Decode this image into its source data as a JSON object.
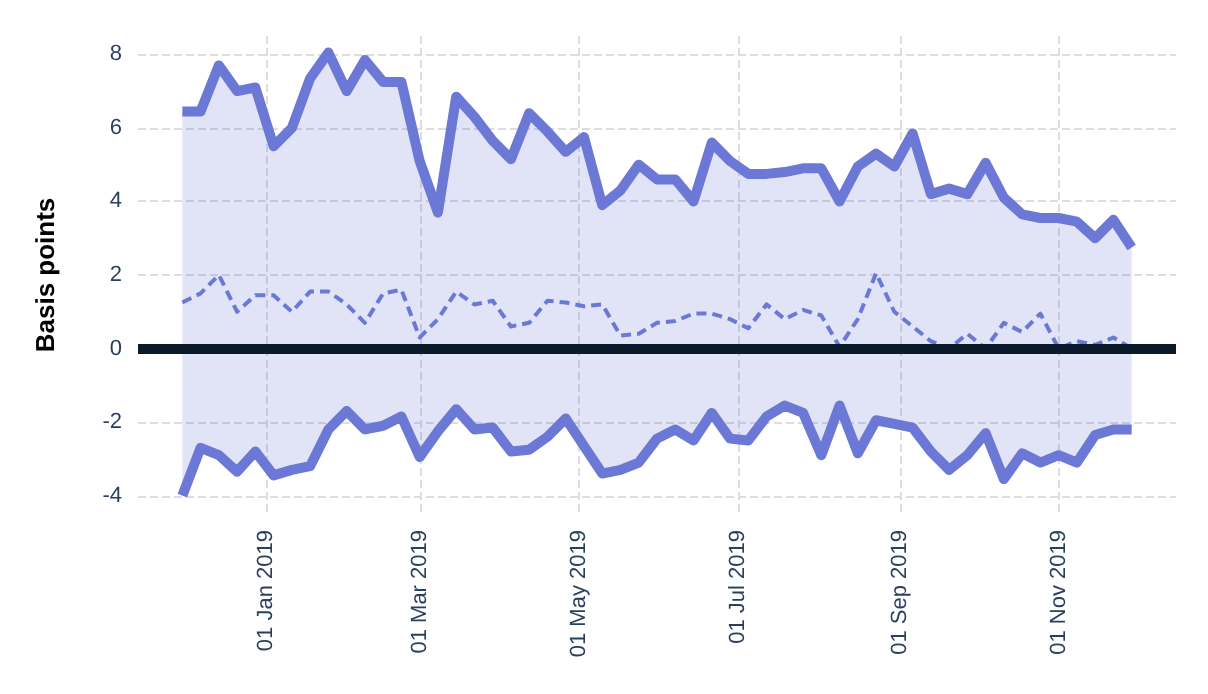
{
  "chart_data": {
    "type": "line",
    "ylabel": "Basis points",
    "x": [
      "2018-11-30",
      "2018-12-07",
      "2018-12-14",
      "2018-12-21",
      "2018-12-28",
      "2019-01-04",
      "2019-01-11",
      "2019-01-18",
      "2019-01-25",
      "2019-02-01",
      "2019-02-08",
      "2019-02-15",
      "2019-02-22",
      "2019-03-01",
      "2019-03-08",
      "2019-03-15",
      "2019-03-22",
      "2019-03-29",
      "2019-04-05",
      "2019-04-12",
      "2019-04-19",
      "2019-04-26",
      "2019-05-03",
      "2019-05-10",
      "2019-05-17",
      "2019-05-24",
      "2019-05-31",
      "2019-06-07",
      "2019-06-14",
      "2019-06-21",
      "2019-06-28",
      "2019-07-05",
      "2019-07-12",
      "2019-07-19",
      "2019-07-26",
      "2019-08-02",
      "2019-08-09",
      "2019-08-16",
      "2019-08-23",
      "2019-08-30",
      "2019-09-06",
      "2019-09-13",
      "2019-09-20",
      "2019-09-27",
      "2019-10-04",
      "2019-10-11",
      "2019-10-18",
      "2019-10-25",
      "2019-11-01",
      "2019-11-08",
      "2019-11-15",
      "2019-11-22",
      "2019-11-29"
    ],
    "series": [
      {
        "color": "#6b78d6",
        "line_style": "solid",
        "values": [
          6.45,
          6.45,
          7.7,
          7.0,
          7.1,
          5.5,
          6.0,
          7.35,
          8.05,
          7.0,
          7.85,
          7.25,
          7.25,
          5.1,
          3.7,
          6.85,
          6.3,
          5.65,
          5.15,
          6.4,
          5.9,
          5.35,
          5.75,
          3.9,
          4.3,
          5.0,
          4.6,
          4.6,
          4.0,
          5.6,
          5.1,
          4.75,
          4.75,
          4.8,
          4.9,
          4.9,
          4.0,
          4.95,
          5.3,
          4.95,
          5.85,
          4.2,
          4.35,
          4.2,
          5.05,
          4.1,
          3.65,
          3.55,
          3.55,
          3.45,
          3.0,
          3.5,
          2.75
        ]
      },
      {
        "color": "#6b78d6",
        "line_style": "dashed",
        "values": [
          1.25,
          1.5,
          2.0,
          1.0,
          1.45,
          1.45,
          1.0,
          1.55,
          1.55,
          1.2,
          0.7,
          1.5,
          1.6,
          0.3,
          0.8,
          1.55,
          1.2,
          1.3,
          0.6,
          0.7,
          1.3,
          1.25,
          1.15,
          1.2,
          0.35,
          0.4,
          0.7,
          0.75,
          0.95,
          0.95,
          0.8,
          0.55,
          1.2,
          0.8,
          1.05,
          0.9,
          0.05,
          0.8,
          2.05,
          1.0,
          0.6,
          0.2,
          0.0,
          0.4,
          0.0,
          0.7,
          0.45,
          0.95,
          0.0,
          0.2,
          0.1,
          0.3,
          0.0
        ],
        "upper": [
          6.45,
          6.45,
          7.7,
          7.0,
          7.1,
          5.5,
          6.0,
          7.35,
          8.05,
          7.0,
          7.85,
          7.25,
          7.25,
          5.1,
          3.7,
          6.85,
          6.3,
          5.65,
          5.15,
          6.4,
          5.9,
          5.35,
          5.75,
          3.9,
          4.3,
          5.0,
          4.6,
          4.6,
          4.0,
          5.6,
          5.1,
          4.75,
          4.75,
          4.8,
          4.9,
          4.9,
          4.0,
          4.95,
          5.3,
          4.95,
          5.85,
          4.2,
          4.35,
          4.2,
          5.05,
          4.1,
          3.65,
          3.55,
          3.55,
          3.45,
          3.0,
          3.5,
          2.75
        ],
        "lower": [
          -4.0,
          -2.7,
          -2.9,
          -3.35,
          -2.8,
          -3.45,
          -3.3,
          -3.2,
          -2.2,
          -1.7,
          -2.2,
          -2.1,
          -1.85,
          -2.95,
          -2.25,
          -1.65,
          -2.2,
          -2.15,
          -2.8,
          -2.75,
          -2.4,
          -1.9,
          -2.65,
          -3.4,
          -3.3,
          -3.1,
          -2.45,
          -2.2,
          -2.5,
          -1.75,
          -2.45,
          -2.5,
          -1.85,
          -1.55,
          -1.75,
          -2.9,
          -1.55,
          -2.85,
          -1.95,
          -2.05,
          -2.15,
          -2.8,
          -3.3,
          -2.9,
          -2.3,
          -3.55,
          -2.85,
          -3.1,
          -2.9,
          -3.1,
          -2.35,
          -2.2,
          -2.2
        ]
      },
      {
        "color": "#6b78d6",
        "line_style": "solid",
        "values": [
          -4.0,
          -2.7,
          -2.9,
          -3.35,
          -2.8,
          -3.45,
          -3.3,
          -3.2,
          -2.2,
          -1.7,
          -2.2,
          -2.1,
          -1.85,
          -2.95,
          -2.25,
          -1.65,
          -2.2,
          -2.15,
          -2.8,
          -2.75,
          -2.4,
          -1.9,
          -2.65,
          -3.4,
          -3.3,
          -3.1,
          -2.45,
          -2.2,
          -2.5,
          -1.75,
          -2.45,
          -2.5,
          -1.85,
          -1.55,
          -1.75,
          -2.9,
          -1.55,
          -2.85,
          -1.95,
          -2.05,
          -2.15,
          -2.8,
          -3.3,
          -2.9,
          -2.3,
          -3.55,
          -2.85,
          -3.1,
          -2.9,
          -3.1,
          -2.35,
          -2.2,
          -2.2
        ]
      }
    ],
    "xlim": [
      "2018-11-13",
      "2019-12-16"
    ],
    "xticks": [
      {
        "value": "2019-01-01",
        "label": "01 Jan 2019"
      },
      {
        "value": "2019-03-01",
        "label": "01 Mar 2019"
      },
      {
        "value": "2019-05-01",
        "label": "01 May 2019"
      },
      {
        "value": "2019-07-01",
        "label": "01 Jul 2019"
      },
      {
        "value": "2019-09-01",
        "label": "01 Sep 2019"
      },
      {
        "value": "2019-11-01",
        "label": "01 Nov 2019"
      }
    ],
    "ylim": [
      -4.5,
      8.5
    ],
    "yticks": [
      -4,
      -2,
      0,
      2,
      4,
      6,
      8
    ],
    "ref_lines": [
      {
        "axis": "y",
        "value": 0,
        "color": "#0b1a2a"
      }
    ],
    "grid": true,
    "marker": "none"
  }
}
